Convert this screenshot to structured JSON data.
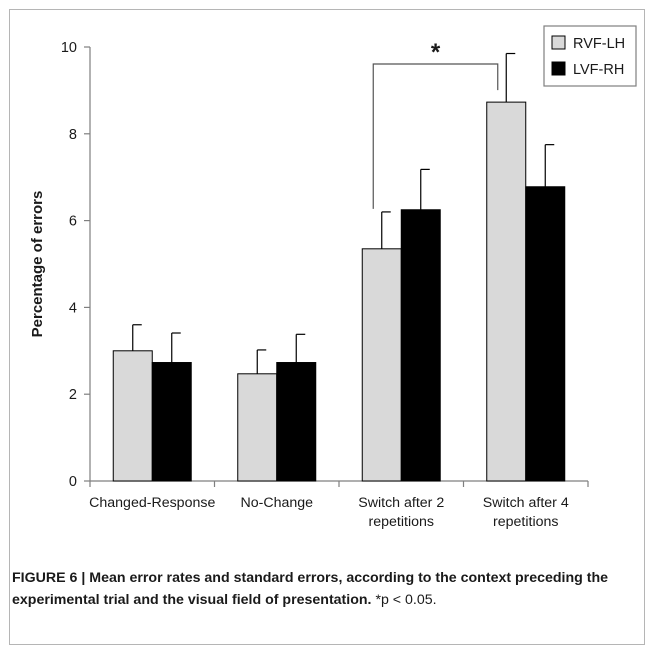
{
  "chart_data": {
    "type": "bar",
    "categories": [
      [
        "Changed-Response"
      ],
      [
        "No-Change"
      ],
      [
        "Switch after 2",
        "repetitions"
      ],
      [
        "Switch after 4",
        "repetitions"
      ]
    ],
    "series": [
      {
        "name": "RVF-LH",
        "color": "#d9d9d9",
        "values": [
          3.0,
          2.47,
          5.35,
          8.73
        ],
        "errors": [
          0.6,
          0.55,
          0.85,
          1.12
        ]
      },
      {
        "name": "LVF-RH",
        "color": "#000000",
        "values": [
          2.73,
          2.73,
          6.25,
          6.78
        ],
        "errors": [
          0.68,
          0.65,
          0.93,
          0.97
        ]
      }
    ],
    "ylabel": "Percentage of errors",
    "xlabel": "",
    "ylim": [
      0,
      10
    ],
    "yticks": [
      0,
      2,
      4,
      6,
      8,
      10
    ],
    "legend_position": "top-right",
    "grid": false,
    "significance": {
      "label": "*",
      "from_category": 2,
      "to_category": 3,
      "series": 0
    }
  },
  "caption": {
    "bold": "FIGURE 6 | Mean error rates and standard errors, according to the context preceding the experimental trial and the visual field of presentation.",
    "note": " *p < 0.05."
  }
}
